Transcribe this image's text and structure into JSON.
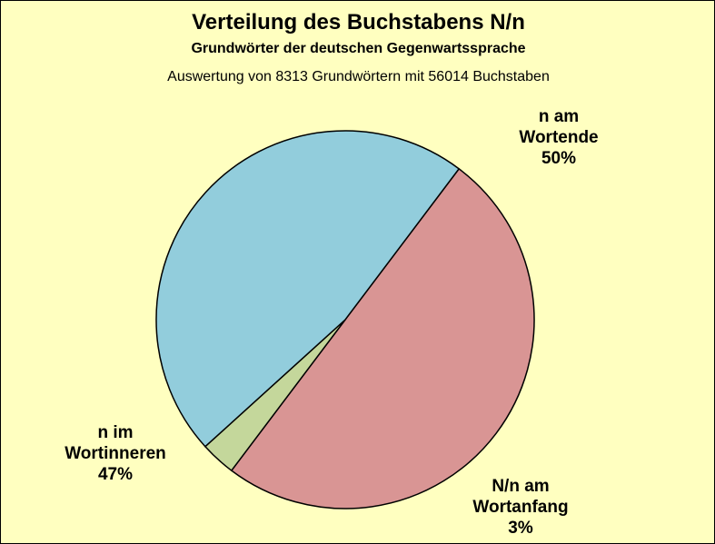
{
  "chart_data": {
    "type": "pie",
    "title": "Verteilung des Buchstabens N/n",
    "subtitle": "Grundwörter der deutschen Gegenwartssprache",
    "subtitle2": "Auswertung von 8313 Grundwörtern mit 56014 Buchstaben",
    "slices": [
      {
        "label_lines": [
          "n am",
          "Wortende"
        ],
        "value": 50,
        "value_label": "50%",
        "color": "#D99594"
      },
      {
        "label_lines": [
          "N/n am",
          "Wortanfang"
        ],
        "value": 3,
        "value_label": "3%",
        "color": "#C4D79B"
      },
      {
        "label_lines": [
          "n im",
          "Wortinneren"
        ],
        "value": 47,
        "value_label": "47%",
        "color": "#92CDDC"
      }
    ],
    "legend": "none"
  },
  "colors": {
    "background": "#FFFFC0",
    "border": "#000000"
  }
}
